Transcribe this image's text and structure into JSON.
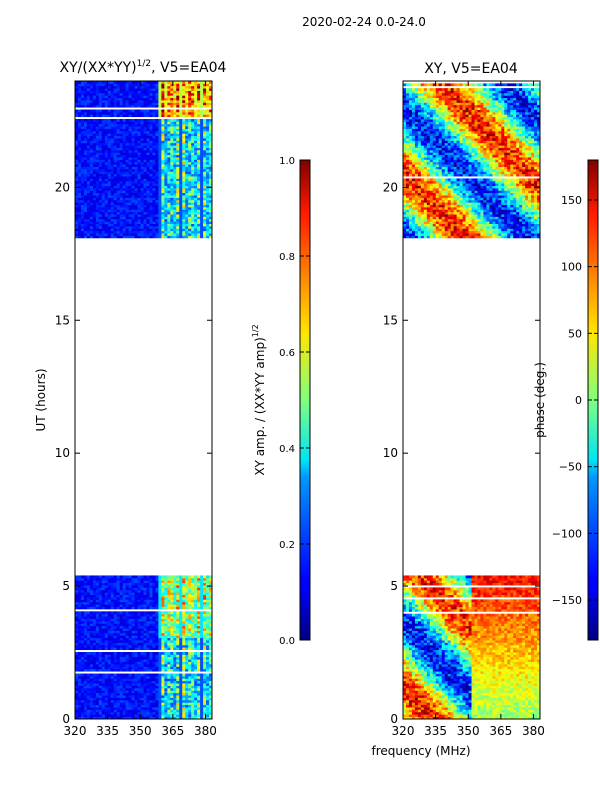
{
  "suptitle": "2020-02-24 0.0-24.0",
  "xlabel_shared": "frequency (MHz)",
  "chart_data": [
    {
      "type": "heatmap",
      "title": "XY/(XX*YY)",
      "title_sup": "1/2",
      "title_suffix": ", V5=EA04",
      "xlabel": "",
      "ylabel": "UT (hours)",
      "xlim": [
        320,
        383
      ],
      "ylim": [
        0,
        24
      ],
      "xticks": [
        320,
        335,
        350,
        365,
        380
      ],
      "yticks": [
        0,
        5,
        10,
        15,
        20
      ],
      "data_blocks_ut": [
        [
          0,
          5.4
        ],
        [
          18.1,
          24
        ]
      ],
      "colorbar": {
        "label": "XY amp. / (XX*YY amp)",
        "label_sup": "1/2",
        "range": [
          0,
          1
        ],
        "ticks": [
          "0.0",
          "0.2",
          "0.4",
          "0.6",
          "0.8",
          "1.0"
        ],
        "colormap": "jet"
      }
    },
    {
      "type": "heatmap",
      "title": "XY, V5=EA04",
      "xlabel": "frequency (MHz)",
      "ylabel": "",
      "xlim": [
        320,
        383
      ],
      "ylim": [
        0,
        24
      ],
      "xticks": [
        320,
        335,
        350,
        365,
        380
      ],
      "yticks": [
        0,
        5,
        10,
        15,
        20
      ],
      "data_blocks_ut": [
        [
          0,
          5.4
        ],
        [
          18.1,
          24
        ]
      ],
      "colorbar": {
        "label": "phase (deg.)",
        "range": [
          -180,
          180
        ],
        "ticks": [
          "−150",
          "−100",
          "−50",
          "0",
          "50",
          "100",
          "150"
        ],
        "tick_values": [
          -150,
          -100,
          -50,
          0,
          50,
          100,
          150
        ],
        "colormap": "jet"
      }
    }
  ]
}
